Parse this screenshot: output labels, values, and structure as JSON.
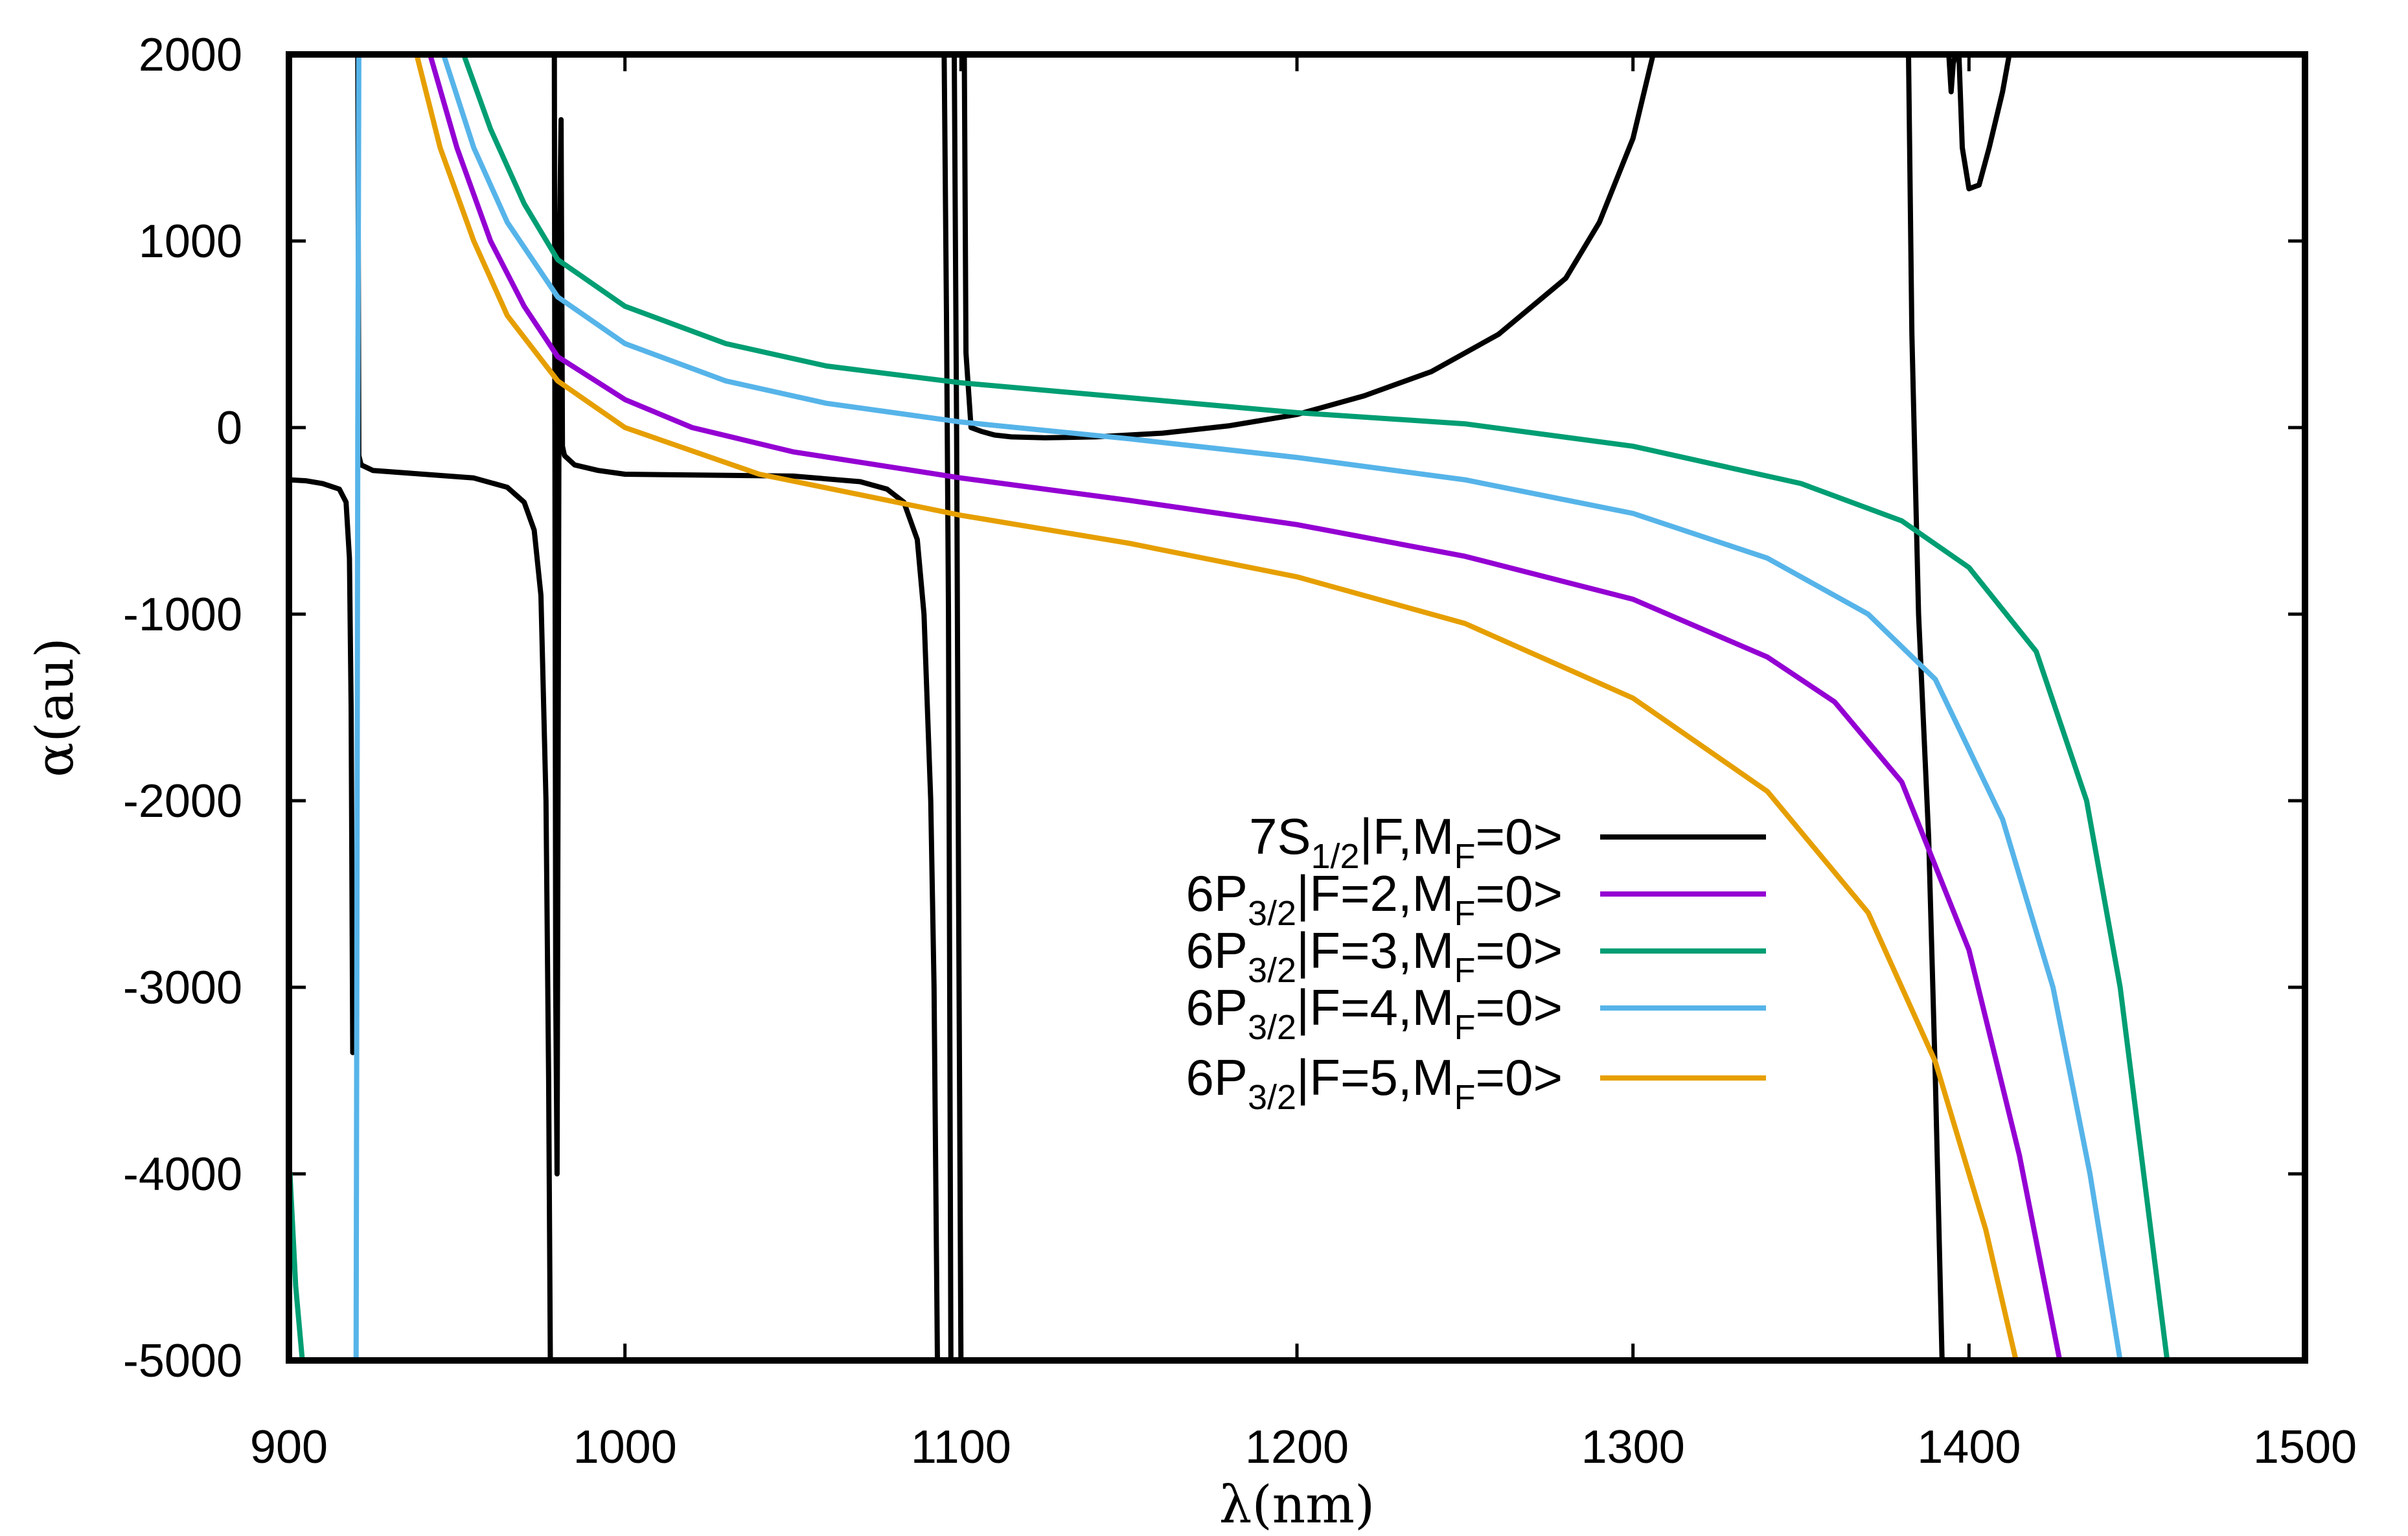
{
  "chart_data": {
    "type": "line",
    "title": "",
    "xlabel": "λ(nm)",
    "ylabel": "α(au)",
    "xlim": [
      900,
      1500
    ],
    "ylim": [
      -5000,
      2000
    ],
    "xticks": [
      900,
      1000,
      1100,
      1200,
      1300,
      1400,
      1500
    ],
    "yticks": [
      -5000,
      -4000,
      -3000,
      -2000,
      -1000,
      0,
      1000,
      2000
    ],
    "legend_position": "center-right",
    "series": [
      {
        "name": "7S1/2|F,MF=0>",
        "label_parts": [
          [
            "7S",
            ""
          ],
          [
            "1/2",
            "sub"
          ],
          [
            "|F,M",
            ""
          ],
          [
            "F",
            "sub"
          ],
          [
            "=0>",
            ""
          ]
        ],
        "color": "#000000",
        "segments": [
          [
            [
              900,
              -280
            ],
            [
              905,
              -285
            ],
            [
              910,
              -300
            ],
            [
              915,
              -330
            ],
            [
              917,
              -400
            ],
            [
              918,
              -700
            ],
            [
              918.5,
              -1500
            ],
            [
              919,
              -3350
            ]
          ],
          [
            [
              920.5,
              2000
            ],
            [
              920.8,
              -150
            ],
            [
              921.5,
              -200
            ],
            [
              925,
              -230
            ],
            [
              940,
              -250
            ],
            [
              955,
              -270
            ],
            [
              965,
              -320
            ],
            [
              970,
              -400
            ],
            [
              973,
              -550
            ],
            [
              975,
              -900
            ],
            [
              976.5,
              -2000
            ],
            [
              977.3,
              -3500
            ],
            [
              977.8,
              -5000
            ]
          ],
          [
            [
              979,
              2000
            ],
            [
              979.4,
              -3000
            ],
            [
              979.8,
              -4000
            ],
            [
              980.5,
              1000
            ],
            [
              981,
              1650
            ],
            [
              981.4,
              -100
            ],
            [
              982,
              -150
            ],
            [
              985,
              -200
            ],
            [
              992,
              -230
            ],
            [
              1000,
              -250
            ],
            [
              1050,
              -260
            ],
            [
              1070,
              -290
            ],
            [
              1078,
              -330
            ],
            [
              1083,
              -400
            ],
            [
              1087,
              -600
            ],
            [
              1089,
              -1000
            ],
            [
              1091,
              -2000
            ],
            [
              1092,
              -3000
            ],
            [
              1093,
              -5000
            ]
          ],
          [
            [
              1095,
              2000
            ],
            [
              1095.7,
              600
            ],
            [
              1096.3,
              -1000
            ],
            [
              1097,
              -5000
            ]
          ],
          [
            [
              1098,
              2000
            ],
            [
              1098.7,
              0
            ],
            [
              1099.3,
              -2500
            ],
            [
              1100,
              -5000
            ]
          ],
          [
            [
              1101,
              2000
            ],
            [
              1101.5,
              400
            ],
            [
              1103,
              0
            ],
            [
              1106,
              -20
            ],
            [
              1110,
              -40
            ],
            [
              1115,
              -50
            ],
            [
              1125,
              -55
            ],
            [
              1140,
              -50
            ],
            [
              1160,
              -30
            ],
            [
              1180,
              10
            ],
            [
              1200,
              70
            ],
            [
              1220,
              170
            ],
            [
              1240,
              300
            ],
            [
              1260,
              500
            ],
            [
              1280,
              800
            ],
            [
              1290,
              1100
            ],
            [
              1300,
              1550
            ],
            [
              1306,
              2000
            ]
          ],
          [
            [
              1382,
              2000
            ],
            [
              1383,
              500
            ],
            [
              1385,
              -1000
            ],
            [
              1388,
              -2200
            ],
            [
              1390,
              -3500
            ],
            [
              1392,
              -5000
            ]
          ],
          [
            [
              1394,
              2000
            ],
            [
              1394.7,
              1800
            ],
            [
              1395.3,
              1950
            ],
            [
              1396,
              2000
            ]
          ],
          [
            [
              1397,
              2000
            ],
            [
              1398,
              1500
            ],
            [
              1400,
              1280
            ],
            [
              1403,
              1300
            ],
            [
              1406,
              1500
            ],
            [
              1410,
              1800
            ],
            [
              1412,
              2000
            ]
          ]
        ]
      },
      {
        "name": "6P3/2|F=2,MF=0>",
        "label_parts": [
          [
            "6P",
            ""
          ],
          [
            "3/2",
            "sub"
          ],
          [
            "|F=2,M",
            ""
          ],
          [
            "F",
            "sub"
          ],
          [
            "=0>",
            ""
          ]
        ],
        "color": "#9400d3",
        "segments": [
          [
            [
              942,
              2000
            ],
            [
              950,
              1500
            ],
            [
              960,
              1000
            ],
            [
              970,
              650
            ],
            [
              980,
              380
            ],
            [
              1000,
              150
            ],
            [
              1020,
              0
            ],
            [
              1050,
              -130
            ],
            [
              1100,
              -270
            ],
            [
              1150,
              -390
            ],
            [
              1200,
              -520
            ],
            [
              1250,
              -690
            ],
            [
              1300,
              -920
            ],
            [
              1340,
              -1230
            ],
            [
              1360,
              -1470
            ],
            [
              1380,
              -1900
            ],
            [
              1400,
              -2800
            ],
            [
              1415,
              -3900
            ],
            [
              1427,
              -5000
            ]
          ]
        ]
      },
      {
        "name": "6P3/2|F=3,MF=0>",
        "label_parts": [
          [
            "6P",
            ""
          ],
          [
            "3/2",
            "sub"
          ],
          [
            "|F=3,M",
            ""
          ],
          [
            "F",
            "sub"
          ],
          [
            "=0>",
            ""
          ]
        ],
        "color": "#009e73",
        "segments": [
          [
            [
              900.3,
              -4000
            ],
            [
              902,
              -4600
            ],
            [
              904,
              -5000
            ]
          ],
          [
            [
              952,
              2000
            ],
            [
              960,
              1600
            ],
            [
              970,
              1200
            ],
            [
              980,
              900
            ],
            [
              1000,
              650
            ],
            [
              1030,
              450
            ],
            [
              1060,
              330
            ],
            [
              1100,
              240
            ],
            [
              1150,
              160
            ],
            [
              1200,
              80
            ],
            [
              1250,
              20
            ],
            [
              1300,
              -100
            ],
            [
              1350,
              -300
            ],
            [
              1380,
              -500
            ],
            [
              1400,
              -750
            ],
            [
              1420,
              -1200
            ],
            [
              1435,
              -2000
            ],
            [
              1445,
              -3000
            ],
            [
              1452,
              -4000
            ],
            [
              1459,
              -5000
            ]
          ]
        ]
      },
      {
        "name": "6P3/2|F=4,MF=0>",
        "label_parts": [
          [
            "6P",
            ""
          ],
          [
            "3/2",
            "sub"
          ],
          [
            "|F=4,M",
            ""
          ],
          [
            "F",
            "sub"
          ],
          [
            "=0>",
            ""
          ]
        ],
        "color": "#56b4e9",
        "segments": [
          [
            [
              920,
              -5000
            ],
            [
              920.2,
              -3000
            ],
            [
              920.5,
              0
            ],
            [
              920.8,
              2000
            ]
          ],
          [
            [
              946,
              2000
            ],
            [
              955,
              1500
            ],
            [
              965,
              1100
            ],
            [
              980,
              700
            ],
            [
              1000,
              450
            ],
            [
              1030,
              250
            ],
            [
              1060,
              130
            ],
            [
              1100,
              30
            ],
            [
              1150,
              -60
            ],
            [
              1200,
              -160
            ],
            [
              1250,
              -280
            ],
            [
              1300,
              -460
            ],
            [
              1340,
              -700
            ],
            [
              1370,
              -1000
            ],
            [
              1390,
              -1350
            ],
            [
              1410,
              -2100
            ],
            [
              1425,
              -3000
            ],
            [
              1436,
              -4000
            ],
            [
              1445,
              -5000
            ]
          ]
        ]
      },
      {
        "name": "6P3/2|F=5,MF=0>",
        "label_parts": [
          [
            "6P",
            ""
          ],
          [
            "3/2",
            "sub"
          ],
          [
            "|F=5,M",
            ""
          ],
          [
            "F",
            "sub"
          ],
          [
            "=0>",
            ""
          ]
        ],
        "color": "#e69f00",
        "segments": [
          [
            [
              938,
              2000
            ],
            [
              945,
              1500
            ],
            [
              955,
              1000
            ],
            [
              965,
              600
            ],
            [
              980,
              250
            ],
            [
              1000,
              0
            ],
            [
              1040,
              -250
            ],
            [
              1100,
              -470
            ],
            [
              1150,
              -620
            ],
            [
              1200,
              -800
            ],
            [
              1250,
              -1050
            ],
            [
              1300,
              -1450
            ],
            [
              1340,
              -1950
            ],
            [
              1370,
              -2600
            ],
            [
              1390,
              -3400
            ],
            [
              1405,
              -4300
            ],
            [
              1414,
              -5000
            ]
          ]
        ]
      }
    ]
  }
}
